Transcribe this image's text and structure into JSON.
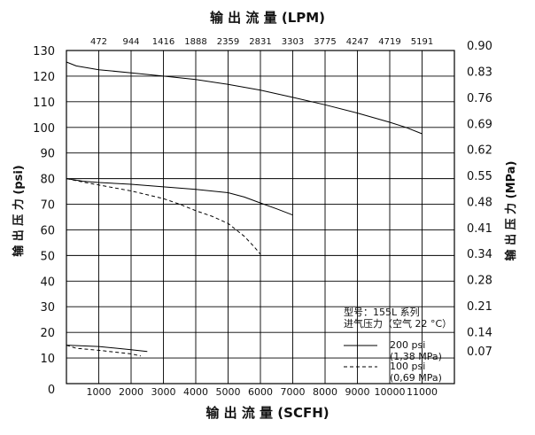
{
  "chart_data": {
    "type": "line",
    "title": "",
    "xlabel": "输 出 流 量 (SCFH)",
    "x2label": "输 出 流 量 (LPM)",
    "ylabel": "输 出 压 力 (psi)",
    "y2label": "输 出 压 力 (MPa)",
    "xlim": [
      0,
      12000
    ],
    "ylim": [
      0,
      130
    ],
    "grid": true,
    "x_ticks": [
      0,
      1000,
      2000,
      3000,
      4000,
      5000,
      6000,
      7000,
      8000,
      9000,
      10000,
      11000
    ],
    "x_tick_labels": [
      "",
      "1000",
      "2000",
      "3000",
      "4000",
      "5000",
      "6000",
      "7000",
      "8000",
      "9000",
      "10000",
      "11000"
    ],
    "x_origin_label": "0",
    "y_ticks": [
      10,
      20,
      30,
      40,
      50,
      60,
      70,
      80,
      90,
      100,
      110,
      120,
      130
    ],
    "y_tick_labels": [
      "10",
      "20",
      "30",
      "40",
      "50",
      "60",
      "70",
      "80",
      "90",
      "100",
      "110",
      "120",
      "130"
    ],
    "x2_ticks": [
      1000,
      2000,
      3000,
      4000,
      5000,
      6000,
      7000,
      8000,
      9000,
      10000,
      11000
    ],
    "x2_tick_labels": [
      "472",
      "944",
      "1416",
      "1888",
      "2359",
      "2831",
      "3303",
      "3775",
      "4247",
      "4719",
      "5191"
    ],
    "y2_ticks": [
      12.8,
      20.3,
      30.5,
      40.6,
      50.8,
      60.9,
      71.1,
      81.2,
      91.4,
      101.5,
      111.7,
      121.8,
      132
    ],
    "y2_tick_labels": [
      "0.07",
      "0.14",
      "0.21",
      "0.28",
      "0.34",
      "0.41",
      "0.48",
      "0.55",
      "0.62",
      "0.69",
      "0.76",
      "0.83",
      "0.90"
    ],
    "legend": {
      "placement": "bottom-right",
      "model": "型号：155L 系列",
      "inlet": "进气压力（空气 22 °C）",
      "entries": [
        {
          "line1": "200 psi",
          "line2": "(1,38 MPa)",
          "style": "solid"
        },
        {
          "line1": "100 psi",
          "line2": "(0,69 MPa)",
          "style": "dashed"
        }
      ]
    },
    "series": [
      {
        "style": "solid",
        "x": [
          0,
          300,
          1000,
          2000,
          3000,
          4000,
          5000,
          6000,
          7000,
          8000,
          9000,
          10000,
          10500,
          11000
        ],
        "y": [
          125.5,
          124,
          122.5,
          121.3,
          120,
          118.7,
          116.8,
          114.5,
          111.7,
          108.8,
          105.6,
          102,
          100,
          97.5
        ]
      },
      {
        "style": "solid",
        "x": [
          0,
          500,
          1000,
          2000,
          3000,
          4000,
          5000,
          5500,
          6000,
          6500,
          7000
        ],
        "y": [
          80,
          79,
          78.5,
          77.8,
          76.8,
          75.8,
          74.5,
          72.8,
          70.5,
          68.2,
          65.8
        ]
      },
      {
        "style": "dashed",
        "x": [
          0,
          500,
          1000,
          2000,
          3000,
          3500,
          4000,
          4500,
          5000,
          5500,
          5800,
          6000
        ],
        "y": [
          80,
          78.7,
          77.5,
          75.2,
          72.2,
          70,
          67.5,
          65.3,
          62.5,
          57.5,
          53.5,
          50.5
        ]
      },
      {
        "style": "solid",
        "x": [
          0,
          1000,
          2000,
          2500
        ],
        "y": [
          15,
          14.5,
          13.2,
          12.5
        ]
      },
      {
        "style": "dashed",
        "x": [
          0,
          300,
          1000,
          2000,
          2300
        ],
        "y": [
          15,
          13.8,
          13,
          11.6,
          10.8
        ]
      }
    ]
  }
}
